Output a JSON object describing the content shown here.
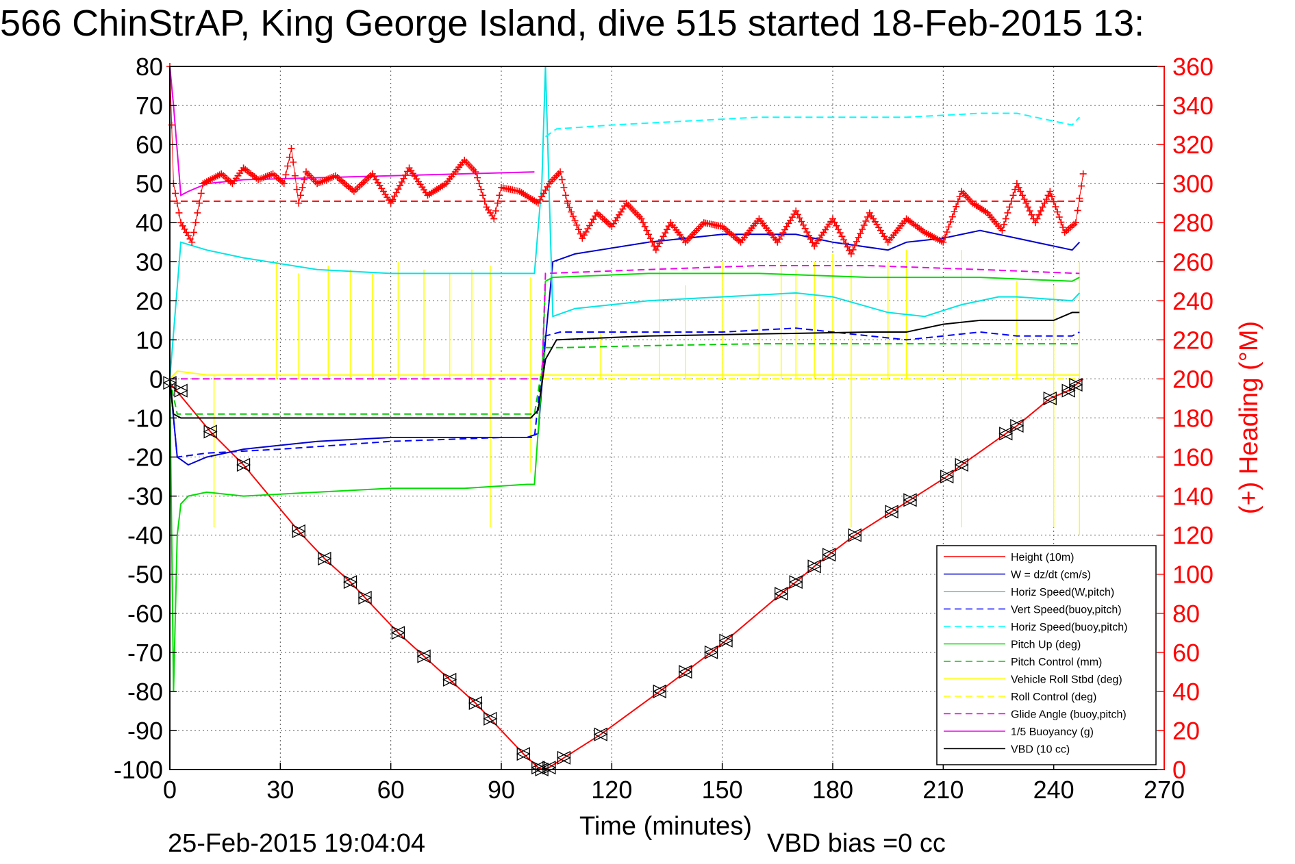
{
  "chart_data": {
    "type": "line",
    "title": "566 ChinStrAP, King George Island, dive 515 started 18-Feb-2015 13:",
    "xlabel": "Time (minutes)",
    "ylabel": "",
    "y2label": "(+) Heading (°M)",
    "footer_left": "25-Feb-2015 19:04:04",
    "footer_right": "VBD bias =0 cc",
    "xlim": [
      0,
      270
    ],
    "ylim": [
      -100,
      80
    ],
    "y2lim": [
      0,
      360
    ],
    "xticks": [
      0,
      30,
      60,
      90,
      120,
      150,
      180,
      210,
      240,
      270
    ],
    "yticks": [
      -100,
      -90,
      -80,
      -70,
      -60,
      -50,
      -40,
      -30,
      -20,
      -10,
      0,
      10,
      20,
      30,
      40,
      50,
      60,
      70,
      80
    ],
    "y2ticks": [
      0,
      20,
      40,
      60,
      80,
      100,
      120,
      140,
      160,
      180,
      200,
      220,
      240,
      260,
      280,
      300,
      320,
      340,
      360
    ],
    "grid": true,
    "legend_position": "bottom-right",
    "colors": {
      "heading_axis": "#ff0000",
      "height": "#ff0000",
      "w": "#0000cc",
      "horiz_speed": "#00e5e5",
      "vert_speed": "#0000ff",
      "horiz_speed_dash": "#00ffff",
      "pitch": "#00dd00",
      "pitch_control": "#00cc00",
      "roll": "#ffff00",
      "glide": "#ee00ee",
      "buoyancy": "#ee00ee",
      "vbd": "#000000"
    },
    "series": [
      {
        "name": "Height (10m)",
        "x": [
          0,
          11,
          20,
          35,
          42,
          49,
          53,
          62,
          69,
          76,
          83,
          87,
          96,
          100,
          101,
          103,
          107,
          117,
          133,
          140,
          147,
          151,
          166,
          170,
          175,
          179,
          186,
          196,
          201,
          211,
          215,
          227,
          230,
          239,
          244,
          246,
          248
        ],
        "y": [
          -1,
          -13.5,
          -22,
          -39,
          -46,
          -52,
          -56,
          -65,
          -71,
          -77,
          -83,
          -87,
          -96,
          -99.5,
          -100,
          -99.5,
          -97,
          -91,
          -80,
          -75,
          -70,
          -67,
          -55,
          -52,
          -48,
          -45,
          -40,
          -34,
          -31,
          -25,
          -22,
          -14,
          -12,
          -5,
          -3,
          -1.5,
          0
        ]
      },
      {
        "name": "W = dz/dt (cm/s)",
        "x": [
          0,
          2,
          5,
          10,
          20,
          40,
          60,
          80,
          97,
          100,
          102,
          104,
          110,
          130,
          150,
          170,
          180,
          195,
          200,
          210,
          220,
          230,
          245,
          247
        ],
        "y": [
          0,
          -20,
          -22,
          -20,
          -18,
          -16,
          -15,
          -15,
          -15,
          -14,
          10,
          30,
          32,
          35,
          37,
          37,
          35,
          33,
          35,
          36,
          38,
          36,
          33,
          35
        ]
      },
      {
        "name": "Horiz Speed(W,pitch)",
        "x": [
          0,
          3,
          10,
          20,
          40,
          60,
          80,
          97,
          99,
          101,
          102,
          104,
          110,
          130,
          150,
          170,
          180,
          195,
          205,
          215,
          225,
          230,
          245,
          247
        ],
        "y": [
          0,
          35,
          33,
          31,
          28,
          27,
          27,
          27,
          27,
          50,
          80,
          16,
          18,
          20,
          21,
          22,
          21,
          17,
          16,
          19,
          21,
          21,
          20,
          22
        ]
      },
      {
        "name": "Vert Speed(buoy,pitch)",
        "x": [
          0,
          2,
          10,
          30,
          60,
          90,
          99,
          102,
          106,
          130,
          150,
          170,
          190,
          200,
          210,
          220,
          230,
          245,
          247
        ],
        "y": [
          0,
          -20,
          -19,
          -18,
          -16,
          -15,
          -15,
          11,
          12,
          12,
          12,
          13,
          11,
          10,
          11,
          12,
          11,
          11,
          12
        ]
      },
      {
        "name": "Horiz Speed(buoy,pitch)",
        "x": [
          102,
          105,
          120,
          140,
          160,
          180,
          200,
          220,
          230,
          240,
          245,
          247
        ],
        "y": [
          62,
          64,
          65,
          66,
          67,
          67,
          67,
          68,
          68,
          66,
          65,
          67
        ]
      },
      {
        "name": "Pitch Up (deg)",
        "x": [
          0,
          1,
          2,
          3,
          5,
          10,
          20,
          40,
          60,
          80,
          97,
          99,
          101,
          102,
          104,
          130,
          160,
          190,
          220,
          245,
          247
        ],
        "y": [
          0,
          -80,
          -40,
          -32,
          -30,
          -29,
          -30,
          -29,
          -28,
          -28,
          -27,
          -27,
          0,
          25,
          26,
          27,
          27,
          26,
          26,
          25,
          26
        ]
      },
      {
        "name": "Pitch Control (mm)",
        "x": [
          0,
          2,
          10,
          40,
          70,
          99,
          102,
          106,
          130,
          160,
          190,
          220,
          247
        ],
        "y": [
          0,
          -9,
          -9,
          -9,
          -9,
          -9,
          8,
          8,
          8.5,
          9,
          9,
          9,
          9
        ]
      },
      {
        "name": "Vehicle Roll Stbd (deg)",
        "x": [
          0,
          2,
          10,
          20,
          40,
          60,
          80,
          99,
          102,
          110,
          130,
          160,
          190,
          220,
          240,
          247
        ],
        "y": [
          0,
          2,
          1,
          1,
          1,
          1,
          1,
          1,
          1,
          1,
          1,
          1,
          1,
          1,
          1,
          1
        ]
      },
      {
        "name": "Roll Control (deg)",
        "x": [
          0,
          30,
          60,
          90,
          100,
          130,
          160,
          190,
          220,
          247
        ],
        "y": [
          0,
          0,
          0,
          0,
          0,
          0,
          0,
          0,
          0,
          0
        ]
      },
      {
        "name": "Glide Angle (buoy,pitch)",
        "x": [
          0,
          99,
          101,
          102,
          130,
          160,
          190,
          220,
          247
        ],
        "y": [
          0,
          0,
          0,
          27,
          28,
          29,
          29,
          28,
          27
        ]
      },
      {
        "name": "1/5 Buoyancy (g)",
        "x": [
          0,
          1,
          3,
          5,
          10,
          20,
          40,
          60,
          80,
          99
        ],
        "y": [
          80,
          70,
          47,
          48,
          50,
          51,
          51.5,
          52,
          52.5,
          53
        ]
      },
      {
        "name": "VBD (10 cc)",
        "x": [
          0,
          1,
          3,
          10,
          40,
          70,
          98,
          100,
          102,
          105,
          130,
          160,
          190,
          200,
          205,
          210,
          220,
          230,
          240,
          245,
          247
        ],
        "y": [
          0,
          -9,
          -10,
          -10,
          -10,
          -10,
          -10,
          -8,
          5,
          10,
          11,
          11.5,
          12,
          12,
          13,
          14,
          15,
          15,
          15,
          17,
          17
        ]
      }
    ],
    "heading_series": {
      "name": "Heading",
      "x": [
        0,
        1,
        3,
        6,
        9,
        11,
        14,
        17,
        20,
        24,
        28,
        31,
        33,
        35,
        37,
        40,
        45,
        50,
        55,
        60,
        65,
        70,
        75,
        80,
        83,
        86,
        88,
        90,
        95,
        100,
        103,
        106,
        108,
        112,
        116,
        120,
        124,
        128,
        132,
        136,
        140,
        145,
        150,
        155,
        160,
        165,
        170,
        175,
        180,
        185,
        190,
        195,
        200,
        205,
        210,
        215,
        218,
        222,
        226,
        230,
        235,
        239,
        243,
        246,
        248
      ],
      "y": [
        360,
        300,
        280,
        270,
        300,
        302,
        305,
        300,
        308,
        302,
        305,
        300,
        318,
        290,
        306,
        300,
        304,
        296,
        305,
        290,
        308,
        294,
        300,
        312,
        306,
        288,
        282,
        298,
        296,
        290,
        300,
        306,
        290,
        272,
        285,
        278,
        290,
        282,
        266,
        280,
        270,
        280,
        278,
        270,
        282,
        270,
        286,
        268,
        282,
        264,
        285,
        270,
        282,
        275,
        270,
        296,
        290,
        285,
        276,
        300,
        280,
        296,
        275,
        280,
        305
      ]
    },
    "heading_mean": 291,
    "marker_series": {
      "x": [
        0,
        3,
        11,
        20,
        35,
        42,
        49,
        53,
        62,
        69,
        76,
        83,
        87,
        96,
        100,
        101,
        103,
        107,
        117,
        133,
        140,
        147,
        151,
        166,
        170,
        175,
        179,
        186,
        196,
        201,
        211,
        215,
        227,
        230,
        239,
        244,
        246
      ],
      "y": [
        -1,
        -3,
        -13.5,
        -22,
        -39,
        -46,
        -52,
        -56,
        -65,
        -71,
        -77,
        -83,
        -87,
        -96,
        -99.5,
        -100,
        -99.5,
        -97,
        -91,
        -80,
        -75,
        -70,
        -67,
        -55,
        -52,
        -48,
        -45,
        -40,
        -34,
        -31,
        -25,
        -22,
        -14,
        -12,
        -5,
        -3,
        -1.5
      ]
    },
    "roll_spikes": {
      "x": [
        12,
        29,
        35,
        43,
        49,
        55,
        62,
        69,
        76,
        82,
        87,
        98,
        117,
        133,
        140,
        150,
        160,
        166,
        170,
        175,
        180,
        185,
        195,
        200,
        215,
        230,
        240,
        247
      ],
      "up": [
        1,
        30,
        27,
        29,
        28,
        27,
        30,
        28,
        27,
        28,
        29,
        26,
        12,
        30,
        24,
        30,
        22,
        30,
        28,
        30,
        32,
        28,
        30,
        33,
        33,
        25,
        24,
        30
      ],
      "down": [
        -38,
        0,
        0,
        0,
        0,
        0,
        0,
        0,
        0,
        0,
        -38,
        -24,
        0,
        0,
        0,
        0,
        0,
        0,
        0,
        0,
        0,
        -38,
        0,
        0,
        -38,
        0,
        -38,
        -40
      ]
    }
  }
}
